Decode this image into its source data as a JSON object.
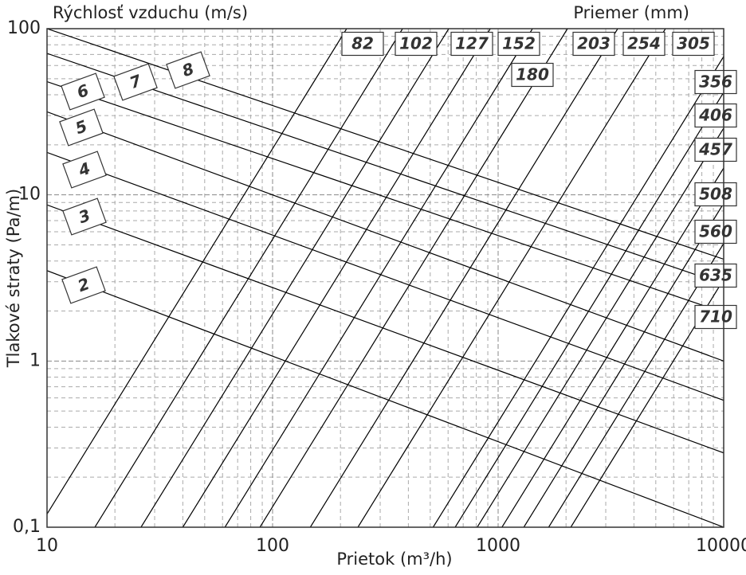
{
  "chart_data": {
    "type": "line",
    "title": "Rýchlosť vzduchu (m/s)",
    "subtitle": "Priemer (mm)",
    "x_label": "Prietok (m³/h)",
    "y_label": "Tlakové straty (Pa/m)",
    "xscale": "log",
    "yscale": "log",
    "grid": true,
    "xlim": [
      10,
      10000
    ],
    "ylim": [
      0.1,
      100
    ],
    "xticks": [
      10,
      100,
      1000,
      10000
    ],
    "yticks": [
      {
        "value": 0.1,
        "label": "0,1"
      },
      1,
      10,
      100
    ],
    "series": [
      {
        "name": "2",
        "color": "#000000",
        "x": [
          10,
          10000
        ],
        "values": [
          3.5,
          0.1
        ]
      },
      {
        "name": "3",
        "color": "#000000",
        "x": [
          10,
          10000
        ],
        "values": [
          8.7,
          0.28
        ]
      },
      {
        "name": "4",
        "color": "#000000",
        "x": [
          10,
          10000
        ],
        "values": [
          18,
          0.58
        ]
      },
      {
        "name": "5",
        "color": "#000000",
        "x": [
          10,
          10000
        ],
        "values": [
          31.6,
          1.0
        ]
      },
      {
        "name": "6",
        "color": "#000000",
        "x": [
          10,
          10000
        ],
        "values": [
          48,
          1.96
        ]
      },
      {
        "name": "7",
        "color": "#000000",
        "x": [
          10,
          10000
        ],
        "values": [
          71,
          2.9
        ]
      },
      {
        "name": "8",
        "color": "#000000",
        "x": [
          10,
          10000
        ],
        "values": [
          100,
          4.1
        ]
      },
      {
        "name": "82",
        "color": "#000000",
        "x": [
          10,
          213
        ],
        "values": [
          0.12,
          100
        ]
      },
      {
        "name": "102",
        "color": "#000000",
        "x": [
          16.3,
          377
        ],
        "values": [
          0.1,
          100
        ]
      },
      {
        "name": "127",
        "color": "#000000",
        "x": [
          26.1,
          604
        ],
        "values": [
          0.1,
          100
        ]
      },
      {
        "name": "152",
        "color": "#000000",
        "x": [
          40,
          923
        ],
        "values": [
          0.1,
          100
        ]
      },
      {
        "name": "180",
        "color": "#000000",
        "x": [
          61.5,
          1420
        ],
        "values": [
          0.1,
          100
        ]
      },
      {
        "name": "203",
        "color": "#000000",
        "x": [
          87.9,
          2030
        ],
        "values": [
          0.1,
          100
        ]
      },
      {
        "name": "254",
        "color": "#000000",
        "x": [
          147,
          3390
        ],
        "values": [
          0.1,
          100
        ]
      },
      {
        "name": "305",
        "color": "#000000",
        "x": [
          239,
          5520
        ],
        "values": [
          0.1,
          100
        ]
      },
      {
        "name": "356",
        "color": "#000000",
        "x": [
          515,
          10000
        ],
        "values": [
          0.1,
          68
        ]
      },
      {
        "name": "406",
        "color": "#000000",
        "x": [
          645,
          10000
        ],
        "values": [
          0.1,
          41.4
        ]
      },
      {
        "name": "457",
        "color": "#000000",
        "x": [
          808,
          10000
        ],
        "values": [
          0.1,
          25.2
        ]
      },
      {
        "name": "508",
        "color": "#000000",
        "x": [
          1040,
          10000
        ],
        "values": [
          0.1,
          14.5
        ]
      },
      {
        "name": "560",
        "color": "#000000",
        "x": [
          1300,
          10000
        ],
        "values": [
          0.1,
          8.9
        ]
      },
      {
        "name": "635",
        "color": "#000000",
        "x": [
          1675,
          10000
        ],
        "values": [
          0.1,
          5.1
        ]
      },
      {
        "name": "710",
        "color": "#000000",
        "x": [
          2100,
          10000
        ],
        "values": [
          0.1,
          3.1
        ]
      }
    ]
  }
}
